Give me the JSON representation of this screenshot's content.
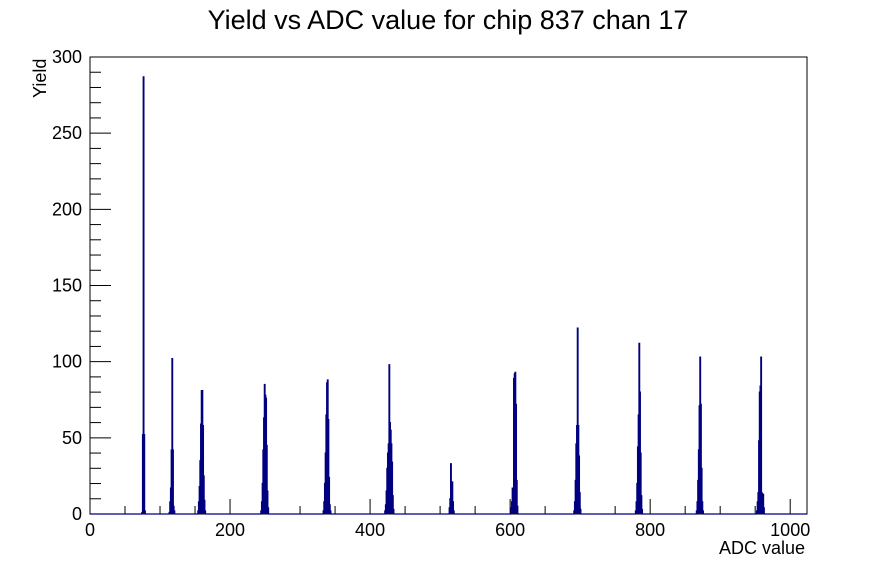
{
  "chart_data": {
    "type": "histogram",
    "title": "Yield vs ADC value for chip 837 chan 17",
    "xlabel": "ADC value",
    "ylabel": "Yield",
    "xlim": [
      0,
      1024
    ],
    "ylim": [
      0,
      300
    ],
    "x_ticks": [
      0,
      200,
      400,
      600,
      800,
      1000
    ],
    "y_ticks": [
      0,
      50,
      100,
      150,
      200,
      250,
      300
    ],
    "grid": false,
    "line_color": "#000080",
    "bins": [
      [
        74,
        1
      ],
      [
        75,
        52
      ],
      [
        76,
        287
      ],
      [
        77,
        52
      ],
      [
        78,
        2
      ],
      [
        113,
        1
      ],
      [
        114,
        8
      ],
      [
        115,
        17
      ],
      [
        116,
        42
      ],
      [
        117,
        102
      ],
      [
        118,
        42
      ],
      [
        119,
        5
      ],
      [
        120,
        2
      ],
      [
        154,
        2
      ],
      [
        155,
        8
      ],
      [
        156,
        18
      ],
      [
        157,
        35
      ],
      [
        158,
        59
      ],
      [
        159,
        81
      ],
      [
        160,
        81
      ],
      [
        161,
        58
      ],
      [
        162,
        25
      ],
      [
        163,
        9
      ],
      [
        164,
        2
      ],
      [
        244,
        2
      ],
      [
        245,
        8
      ],
      [
        246,
        20
      ],
      [
        247,
        42
      ],
      [
        248,
        63
      ],
      [
        249,
        85
      ],
      [
        250,
        78
      ],
      [
        251,
        76
      ],
      [
        252,
        45
      ],
      [
        253,
        15
      ],
      [
        254,
        4
      ],
      [
        333,
        2
      ],
      [
        334,
        8
      ],
      [
        335,
        20
      ],
      [
        336,
        40
      ],
      [
        337,
        65
      ],
      [
        338,
        86
      ],
      [
        339,
        88
      ],
      [
        340,
        62
      ],
      [
        341,
        24
      ],
      [
        342,
        6
      ],
      [
        343,
        2
      ],
      [
        421,
        2
      ],
      [
        422,
        6
      ],
      [
        423,
        15
      ],
      [
        424,
        30
      ],
      [
        425,
        40
      ],
      [
        426,
        46
      ],
      [
        427,
        98
      ],
      [
        428,
        60
      ],
      [
        429,
        55
      ],
      [
        430,
        46
      ],
      [
        431,
        34
      ],
      [
        432,
        12
      ],
      [
        433,
        3
      ],
      [
        513,
        4
      ],
      [
        514,
        10
      ],
      [
        515,
        33
      ],
      [
        516,
        21
      ],
      [
        517,
        21
      ],
      [
        518,
        8
      ],
      [
        519,
        2
      ],
      [
        601,
        4
      ],
      [
        602,
        8
      ],
      [
        603,
        17
      ],
      [
        604,
        12
      ],
      [
        605,
        89
      ],
      [
        606,
        92
      ],
      [
        607,
        93
      ],
      [
        608,
        72
      ],
      [
        609,
        22
      ],
      [
        610,
        5
      ],
      [
        691,
        2
      ],
      [
        692,
        8
      ],
      [
        693,
        22
      ],
      [
        694,
        46
      ],
      [
        695,
        58
      ],
      [
        696,
        122
      ],
      [
        697,
        58
      ],
      [
        698,
        38
      ],
      [
        699,
        14
      ],
      [
        700,
        3
      ],
      [
        779,
        2
      ],
      [
        780,
        8
      ],
      [
        781,
        20
      ],
      [
        782,
        44
      ],
      [
        783,
        65
      ],
      [
        784,
        112
      ],
      [
        785,
        80
      ],
      [
        786,
        40
      ],
      [
        787,
        12
      ],
      [
        788,
        3
      ],
      [
        866,
        2
      ],
      [
        867,
        8
      ],
      [
        868,
        22
      ],
      [
        869,
        42
      ],
      [
        870,
        71
      ],
      [
        871,
        103
      ],
      [
        872,
        72
      ],
      [
        873,
        30
      ],
      [
        874,
        8
      ],
      [
        875,
        2
      ],
      [
        952,
        2
      ],
      [
        953,
        8
      ],
      [
        954,
        14
      ],
      [
        955,
        48
      ],
      [
        956,
        80
      ],
      [
        957,
        84
      ],
      [
        958,
        103
      ],
      [
        959,
        14
      ],
      [
        960,
        9
      ],
      [
        961,
        13
      ],
      [
        962,
        4
      ]
    ]
  }
}
